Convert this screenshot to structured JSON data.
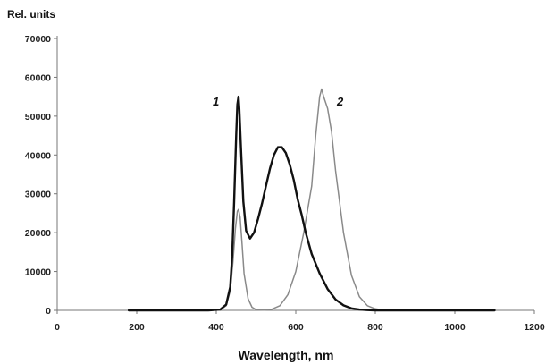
{
  "chart_data": {
    "type": "line",
    "ylabel": "Rel. units",
    "xlabel": "Wavelength, nm",
    "xlim": [
      0,
      1200
    ],
    "ylim": [
      0,
      70000
    ],
    "x_ticks": [
      0,
      200,
      400,
      600,
      800,
      1000,
      1200
    ],
    "y_ticks": [
      0,
      10000,
      20000,
      30000,
      40000,
      50000,
      60000,
      70000
    ],
    "x_tick_labels": [
      "0",
      "200",
      "400",
      "600",
      "800",
      "1000",
      "1200"
    ],
    "y_tick_labels": [
      "0",
      "10000",
      "20000",
      "30000",
      "40000",
      "50000",
      "60000",
      "70000"
    ],
    "grid": false,
    "colors": {
      "series_1": "#111111",
      "series_2": "#8a8a8a"
    },
    "series": [
      {
        "name": "1",
        "x": [
          180,
          380,
          410,
          425,
          435,
          440,
          445,
          450,
          453,
          456,
          458,
          462,
          468,
          475,
          485,
          495,
          505,
          515,
          525,
          535,
          545,
          555,
          565,
          575,
          585,
          595,
          605,
          615,
          625,
          640,
          660,
          680,
          700,
          720,
          740,
          760,
          780,
          800,
          820,
          850,
          900,
          1000,
          1100
        ],
        "y": [
          0,
          0,
          200,
          1500,
          6000,
          14000,
          28000,
          45000,
          53000,
          55000,
          52000,
          42000,
          28000,
          20500,
          18500,
          20000,
          23500,
          27500,
          32000,
          36500,
          40000,
          42000,
          42000,
          40500,
          37500,
          33500,
          28500,
          24500,
          20000,
          14500,
          9500,
          5500,
          2800,
          1300,
          500,
          200,
          80,
          0,
          0,
          0,
          0,
          0,
          0
        ]
      },
      {
        "name": "2",
        "x": [
          180,
          380,
          410,
          425,
          435,
          442,
          448,
          453,
          456,
          460,
          465,
          470,
          480,
          490,
          500,
          520,
          540,
          560,
          580,
          600,
          620,
          640,
          650,
          660,
          665,
          670,
          680,
          690,
          700,
          720,
          740,
          760,
          780,
          800,
          820,
          850,
          900,
          1000,
          1100
        ],
        "y": [
          0,
          0,
          150,
          1200,
          5000,
          12500,
          21000,
          25500,
          26000,
          24000,
          17000,
          9500,
          3000,
          800,
          200,
          100,
          300,
          1200,
          4000,
          10000,
          20000,
          32000,
          45000,
          55000,
          57000,
          55000,
          52000,
          46000,
          36000,
          20000,
          9000,
          3500,
          1200,
          400,
          100,
          0,
          0,
          0,
          0
        ]
      }
    ]
  }
}
